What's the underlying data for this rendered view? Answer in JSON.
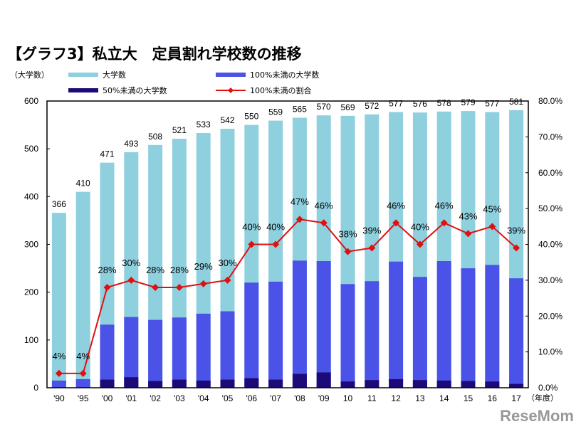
{
  "title": "【グラフ3】私立大　定員割れ学校数の推移",
  "y_unit": "（大学数）",
  "x_unit": "（年度）",
  "watermark": "ReseMom",
  "colors": {
    "total": "#8ed0de",
    "under100": "#4a52e8",
    "under50": "#1c0a78",
    "ratio": "#e01010"
  },
  "chart_data": {
    "type": "bar+line",
    "categories": [
      "'90",
      "'95",
      "'00",
      "'01",
      "'02",
      "'03",
      "'04",
      "'05",
      "'06",
      "'07",
      "'08",
      "'09",
      "10",
      "11",
      "12",
      "13",
      "14",
      "15",
      "16",
      "17"
    ],
    "series": [
      {
        "name": "大学数",
        "type": "bar",
        "values": [
          366,
          410,
          471,
          493,
          508,
          521,
          533,
          542,
          550,
          559,
          565,
          570,
          569,
          572,
          577,
          576,
          578,
          579,
          577,
          581
        ],
        "labels": [
          "366",
          "410",
          "471",
          "493",
          "508",
          "521",
          "533",
          "542",
          "550",
          "559",
          "565",
          "570",
          "569",
          "572",
          "577",
          "576",
          "578",
          "579",
          "577",
          "581"
        ]
      },
      {
        "name": "100%未満の大学数",
        "type": "bar",
        "values": [
          15,
          18,
          132,
          148,
          142,
          147,
          155,
          160,
          220,
          222,
          266,
          265,
          217,
          223,
          264,
          232,
          265,
          250,
          257,
          229
        ]
      },
      {
        "name": "50%未満の大学数",
        "type": "bar",
        "values": [
          0,
          0,
          17,
          22,
          14,
          17,
          15,
          17,
          20,
          17,
          29,
          32,
          13,
          16,
          18,
          16,
          15,
          14,
          13,
          8
        ]
      },
      {
        "name": "100%未満の割合",
        "type": "line",
        "axis": "right",
        "values": [
          4,
          4,
          28,
          30,
          28,
          28,
          29,
          30,
          40,
          40,
          47,
          46,
          38,
          39,
          46,
          40,
          46,
          43,
          45,
          39
        ],
        "labels": [
          "4%",
          "4%",
          "28%",
          "30%",
          "28%",
          "28%",
          "29%",
          "30%",
          "40%",
          "40%",
          "47%",
          "46%",
          "38%",
          "39%",
          "46%",
          "40%",
          "46%",
          "43%",
          "45%",
          "39%"
        ]
      }
    ],
    "ylim": [
      0,
      600
    ],
    "y_ticks": [
      "0",
      "100",
      "200",
      "300",
      "400",
      "500",
      "600"
    ],
    "y2lim": [
      0,
      80
    ],
    "y2_ticks": [
      "0.0%",
      "10.0%",
      "20.0%",
      "30.0%",
      "40.0%",
      "50.0%",
      "60.0%",
      "70.0%",
      "80.0%"
    ],
    "legend": "top",
    "grid": false
  }
}
